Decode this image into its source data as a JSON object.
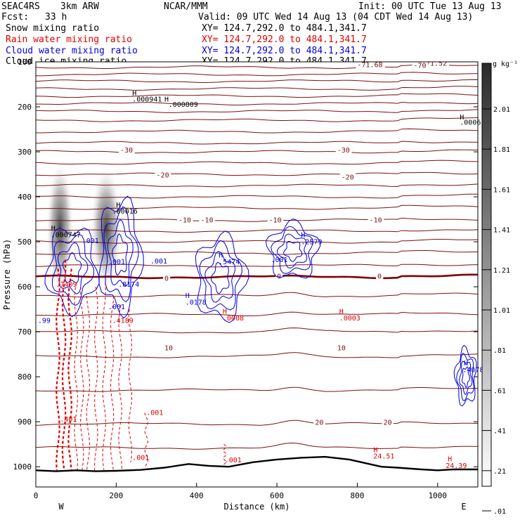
{
  "header": {
    "project": "SEAC4RS",
    "model": "3km ARW",
    "org": "NCAR/MMM",
    "init": "Init: 00 UTC Tue 13 Aug 13",
    "fcst_label": "Fcst:",
    "fcst_value": "33 h",
    "valid": "Valid: 09 UTC Wed 14 Aug 13 (04 CDT Wed 14 Aug 13)",
    "fields": [
      {
        "name": "Snow mixing ratio",
        "xy": "XY= 124.7,292.0 to 484.1,341.7",
        "color": "#000000"
      },
      {
        "name": "Rain water mixing ratio",
        "xy": "XY= 124.7,292.0 to 484.1,341.7",
        "color": "#e00000"
      },
      {
        "name": "Cloud water mixing ratio",
        "xy": "XY= 124.7,292.0 to 484.1,341.7",
        "color": "#0000e0"
      },
      {
        "name": "Cloud ice mixing ratio",
        "xy": "XY= 124.7,292.0 to 484.1,341.7",
        "color": "#000000"
      }
    ]
  },
  "chart_data": {
    "type": "cross-section",
    "xlabel": "Distance (km)",
    "ylabel": "Pressure (hPa)",
    "xlim": [
      0,
      1100
    ],
    "ylim": [
      1045,
      100
    ],
    "x_ticks": [
      0,
      200,
      400,
      600,
      800,
      1000
    ],
    "y_ticks": [
      100,
      200,
      300,
      400,
      500,
      600,
      700,
      800,
      900,
      1000
    ],
    "y_tick_labels": [
      "100",
      "200",
      "300",
      "400",
      "500",
      "600",
      "700",
      "800",
      "900",
      "1000"
    ],
    "x_end_labels": {
      "left": "W",
      "right": "E"
    },
    "colorbar": {
      "unit": "g kg⁻¹",
      "levels": [
        2.01,
        1.81,
        1.61,
        1.41,
        1.21,
        1.01,
        0.81,
        0.61,
        0.41,
        0.21,
        0.01
      ],
      "level_labels": [
        "2.01",
        "1.81",
        "1.61",
        "1.41",
        "1.21",
        "1.01",
        ".81",
        ".61",
        ".41",
        ".21",
        ".01"
      ]
    },
    "temperature_contours": {
      "color": "#7a1010",
      "zero_isotherm_color": "#800000",
      "base_pressures": [
        112,
        128,
        143,
        160,
        176,
        193,
        210,
        230,
        255,
        280,
        300,
        325,
        350,
        375,
        400,
        425,
        452,
        476,
        500,
        525,
        553,
        578,
        620,
        662,
        700,
        755,
        830,
        905,
        958
      ],
      "zero_isotherm_pressure": 578,
      "labels": [
        {
          "x": 960,
          "p": 107,
          "text": "-71.52"
        },
        {
          "x": 800,
          "p": 110,
          "text": "-71.68"
        },
        {
          "x": 940,
          "p": 112,
          "text": "-70"
        },
        {
          "x": 210,
          "p": 300,
          "text": "-30"
        },
        {
          "x": 750,
          "p": 300,
          "text": "-30"
        },
        {
          "x": 300,
          "p": 355,
          "text": "-20"
        },
        {
          "x": 760,
          "p": 360,
          "text": "-20"
        },
        {
          "x": 410,
          "p": 455,
          "text": "-10"
        },
        {
          "x": 580,
          "p": 455,
          "text": "-10"
        },
        {
          "x": 830,
          "p": 455,
          "text": "-10"
        },
        {
          "x": 355,
          "p": 455,
          "text": "-10"
        },
        {
          "x": 600,
          "p": 580,
          "text": "0"
        },
        {
          "x": 850,
          "p": 580,
          "text": "0"
        },
        {
          "x": 320,
          "p": 585,
          "text": "0"
        },
        {
          "x": 320,
          "p": 740,
          "text": "10"
        },
        {
          "x": 750,
          "p": 740,
          "text": "10"
        },
        {
          "x": 695,
          "p": 905,
          "text": "20"
        },
        {
          "x": 865,
          "p": 905,
          "text": "20"
        }
      ]
    },
    "terrain_line": {
      "color": "#000000",
      "points": [
        [
          0,
          1008
        ],
        [
          50,
          1010
        ],
        [
          100,
          1008
        ],
        [
          150,
          1010
        ],
        [
          200,
          1009
        ],
        [
          260,
          1007
        ],
        [
          320,
          1002
        ],
        [
          380,
          994
        ],
        [
          430,
          998
        ],
        [
          480,
          1000
        ],
        [
          540,
          990
        ],
        [
          600,
          984
        ],
        [
          660,
          980
        ],
        [
          720,
          978
        ],
        [
          780,
          984
        ],
        [
          820,
          992
        ],
        [
          860,
          1000
        ],
        [
          900,
          1002
        ],
        [
          960,
          1006
        ],
        [
          1000,
          1008
        ],
        [
          1040,
          1006
        ],
        [
          1100,
          1006
        ]
      ]
    },
    "snow_shading": [
      {
        "x": 60,
        "p": 470,
        "rx": 35,
        "rp": 150,
        "max": 1.6
      },
      {
        "x": 175,
        "p": 470,
        "rx": 40,
        "rp": 140,
        "max": 1.4
      }
    ],
    "cloud_water_blobs": [
      {
        "x": 90,
        "p": 560,
        "rx": 60,
        "rp": 90
      },
      {
        "x": 210,
        "p": 530,
        "rx": 50,
        "rp": 120
      },
      {
        "x": 460,
        "p": 580,
        "rx": 60,
        "rp": 90
      },
      {
        "x": 640,
        "p": 520,
        "rx": 60,
        "rp": 60
      },
      {
        "x": 1070,
        "p": 800,
        "rx": 25,
        "rp": 60
      }
    ],
    "rain_columns": [
      {
        "x": 55,
        "p_top": 560,
        "p_bot": 1008
      },
      {
        "x": 70,
        "p_top": 540,
        "p_bot": 1008
      },
      {
        "x": 85,
        "p_top": 560,
        "p_bot": 1008
      },
      {
        "x": 100,
        "p_top": 590,
        "p_bot": 1008
      },
      {
        "x": 115,
        "p_top": 600,
        "p_bot": 1008
      },
      {
        "x": 130,
        "p_top": 620,
        "p_bot": 1008
      },
      {
        "x": 150,
        "p_top": 600,
        "p_bot": 1008
      },
      {
        "x": 170,
        "p_top": 590,
        "p_bot": 1008
      },
      {
        "x": 190,
        "p_top": 620,
        "p_bot": 1008
      },
      {
        "x": 210,
        "p_top": 640,
        "p_bot": 1008
      },
      {
        "x": 235,
        "p_top": 650,
        "p_bot": 990
      },
      {
        "x": 275,
        "p_top": 880,
        "p_bot": 1000
      },
      {
        "x": 470,
        "p_top": 950,
        "p_bot": 998
      }
    ],
    "annotations": [
      {
        "x": 240,
        "p": 175,
        "text": "H",
        "color": "#000000"
      },
      {
        "x": 240,
        "p": 188,
        "text": ".000941",
        "color": "#000000"
      },
      {
        "x": 320,
        "p": 188,
        "text": "H",
        "color": "#000000"
      },
      {
        "x": 330,
        "p": 200,
        "text": ".000809",
        "color": "#000000"
      },
      {
        "x": 1055,
        "p": 228,
        "text": "H",
        "color": "#000000"
      },
      {
        "x": 1055,
        "p": 240,
        "text": ".0006",
        "color": "#000000"
      },
      {
        "x": 200,
        "p": 423,
        "text": "H",
        "color": "#000000"
      },
      {
        "x": 190,
        "p": 437,
        "text": ".00016",
        "color": "#000000"
      },
      {
        "x": 38,
        "p": 475,
        "text": "H",
        "color": "#000000"
      },
      {
        "x": 38,
        "p": 490,
        "text": ".000747",
        "color": "#000000"
      },
      {
        "x": 115,
        "p": 503,
        "text": ".001",
        "color": "#0000e0"
      },
      {
        "x": 180,
        "p": 550,
        "text": ".001",
        "color": "#0000e0"
      },
      {
        "x": 285,
        "p": 548,
        "text": ".001",
        "color": "#0000e0"
      },
      {
        "x": 455,
        "p": 535,
        "text": "H",
        "color": "#0000e0"
      },
      {
        "x": 455,
        "p": 550,
        "text": ".5474",
        "color": "#0000e0"
      },
      {
        "x": 585,
        "p": 545,
        "text": ".001",
        "color": "#0000e0"
      },
      {
        "x": 660,
        "p": 490,
        "text": "H",
        "color": "#0000e0"
      },
      {
        "x": 660,
        "p": 505,
        "text": ".2579",
        "color": "#0000e0"
      },
      {
        "x": 372,
        "p": 625,
        "text": "H",
        "color": "#0000e0"
      },
      {
        "x": 372,
        "p": 640,
        "text": ".0178",
        "color": "#0000e0"
      },
      {
        "x": 465,
        "p": 660,
        "text": "H",
        "color": "#e00000"
      },
      {
        "x": 465,
        "p": 675,
        "text": ".0008",
        "color": "#e00000"
      },
      {
        "x": 755,
        "p": 660,
        "text": "H",
        "color": "#e00000"
      },
      {
        "x": 755,
        "p": 675,
        "text": ".0003",
        "color": "#e00000"
      },
      {
        "x": 50,
        "p": 600,
        "text": ".7409",
        "color": "#e00000"
      },
      {
        "x": 205,
        "p": 600,
        "text": ".8174",
        "color": "#0000e0"
      },
      {
        "x": 190,
        "p": 680,
        "text": ".4189",
        "color": "#e00000"
      },
      {
        "x": 180,
        "p": 650,
        "text": ".001",
        "color": "#0000e0"
      },
      {
        "x": 5,
        "p": 680,
        "text": ".99",
        "color": "#0000e0"
      },
      {
        "x": 60,
        "p": 900,
        "text": ".401",
        "color": "#e00000"
      },
      {
        "x": 275,
        "p": 885,
        "text": ".001",
        "color": "#e00000"
      },
      {
        "x": 240,
        "p": 985,
        "text": ".001",
        "color": "#e00000"
      },
      {
        "x": 470,
        "p": 990,
        "text": ".001",
        "color": "#e00000"
      },
      {
        "x": 840,
        "p": 968,
        "text": "H",
        "color": "#e00000"
      },
      {
        "x": 840,
        "p": 982,
        "text": "24.51",
        "color": "#e00000"
      },
      {
        "x": 1025,
        "p": 988,
        "text": "H",
        "color": "#e00000"
      },
      {
        "x": 1020,
        "p": 1003,
        "text": "24.39",
        "color": "#e00000"
      },
      {
        "x": 1065,
        "p": 775,
        "text": "H",
        "color": "#0000e0"
      },
      {
        "x": 1062,
        "p": 790,
        "text": ".4078",
        "color": "#0000e0"
      }
    ]
  }
}
